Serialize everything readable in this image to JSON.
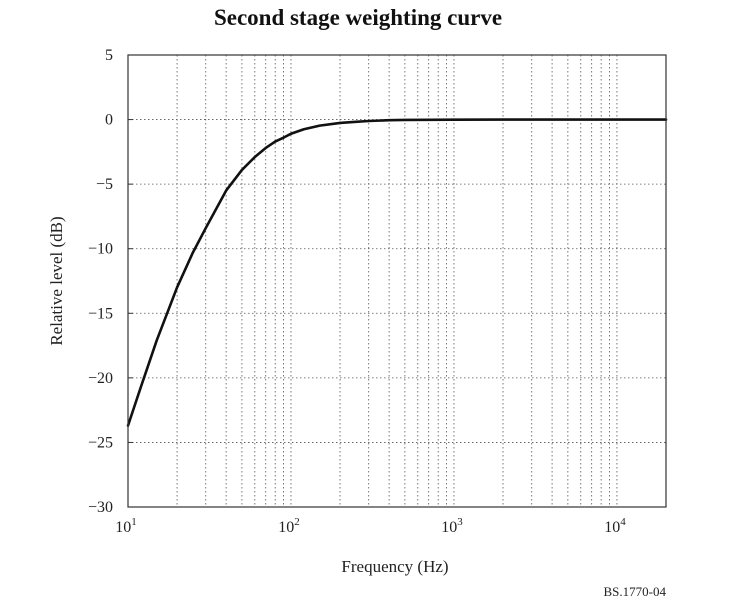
{
  "chart_data": {
    "type": "line",
    "title": "Second stage weighting curve",
    "xlabel": "Frequency (Hz)",
    "ylabel": "Relative level (dB)",
    "x_scale": "log",
    "xlim": [
      10,
      20000
    ],
    "ylim": [
      -30,
      5
    ],
    "grid": true,
    "legend": "none",
    "x_ticks": [
      {
        "base": "10",
        "exp": "1"
      },
      {
        "base": "10",
        "exp": "2"
      },
      {
        "base": "10",
        "exp": "3"
      },
      {
        "base": "10",
        "exp": "4"
      }
    ],
    "y_ticks": [
      "5",
      "0",
      "−5",
      "−10",
      "−15",
      "−20",
      "−25",
      "−30"
    ],
    "series": [
      {
        "color": "#111111",
        "x": [
          10,
          12,
          15,
          20,
          25,
          30,
          40,
          50,
          60,
          70,
          80,
          90,
          100,
          120,
          150,
          200,
          250,
          300,
          400,
          500,
          1000,
          2000,
          5000,
          10000,
          20000
        ],
        "y": [
          -23.7,
          -20.7,
          -17.1,
          -13.0,
          -10.3,
          -8.4,
          -5.5,
          -3.9,
          -2.9,
          -2.2,
          -1.7,
          -1.4,
          -1.1,
          -0.75,
          -0.47,
          -0.26,
          -0.17,
          -0.11,
          -0.05,
          -0.03,
          -0.01,
          0.0,
          0.0,
          0.0,
          0.0
        ]
      }
    ]
  },
  "figure_ref": "BS.1770-04"
}
